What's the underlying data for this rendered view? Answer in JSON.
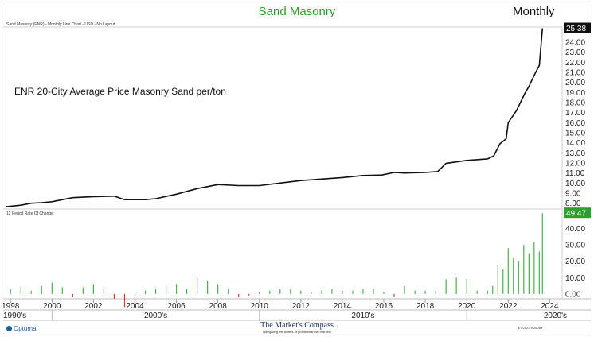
{
  "header": {
    "title": "Sand Masonry",
    "period": "Monthly",
    "subtitle": "Sand Masonry (ENR) - Monthly Line Chart - USD - No Layout"
  },
  "annotation": "ENR 20-City Average Price Masonry Sand per/ton",
  "roc_label": "12 Period Rate Of Change",
  "footer": {
    "vendor": "Optuma",
    "brand": "The Market's Compass",
    "tagline": "Navigating the waters of global financial markets",
    "stamp": "9/7/2023 9:26 AM"
  },
  "colors": {
    "title": "#2e9e2e",
    "line": "#111111",
    "positive_bar": "#4caf50",
    "negative_bar": "#e53935",
    "last_value_badge": "#111111",
    "roc_badge": "#2e9e2e"
  },
  "chart_data": [
    {
      "type": "line",
      "title": "Sand Masonry",
      "xlabel": "",
      "ylabel": "",
      "x_ticks": [
        "1998",
        "2000",
        "2002",
        "2004",
        "2006",
        "2008",
        "2010",
        "2012",
        "2014",
        "2016",
        "2018",
        "2020",
        "2022",
        "2024"
      ],
      "decade_labels": [
        "1990's",
        "2000's",
        "2010's",
        "2020's"
      ],
      "xlim": [
        1997.8,
        2024.6
      ],
      "ylim": [
        7.5,
        25.5
      ],
      "y_ticks": [
        "8.00",
        "9.00",
        "10.00",
        "11.00",
        "12.00",
        "13.00",
        "14.00",
        "15.00",
        "16.00",
        "17.00",
        "18.00",
        "19.00",
        "20.00",
        "21.00",
        "22.00",
        "23.00",
        "24.00"
      ],
      "last_value": "25.38",
      "grid": false,
      "series": [
        {
          "x": [
            1997.8,
            1998.5,
            1999.0,
            1999.5,
            2000.0,
            2001.0,
            2002.0,
            2003.0,
            2003.5,
            2004.5,
            2005.0,
            2006.0,
            2007.0,
            2008.0,
            2009.0,
            2010.0,
            2011.0,
            2012.0,
            2013.0,
            2014.0,
            2015.0,
            2015.9,
            2016.5,
            2017.0,
            2018.0,
            2018.6,
            2019.0,
            2020.0,
            2021.0,
            2021.3,
            2021.6,
            2021.9,
            2022.0,
            2022.4,
            2022.8,
            2023.0,
            2023.3,
            2023.5,
            2023.65
          ],
          "values": [
            7.65,
            7.8,
            8.0,
            8.05,
            8.15,
            8.55,
            8.65,
            8.7,
            8.35,
            8.35,
            8.45,
            8.9,
            9.45,
            9.85,
            9.75,
            9.75,
            10.0,
            10.25,
            10.4,
            10.55,
            10.75,
            10.8,
            11.05,
            11.0,
            11.05,
            11.15,
            11.95,
            12.25,
            12.4,
            12.7,
            13.9,
            14.4,
            16.0,
            17.2,
            18.9,
            19.6,
            20.9,
            21.7,
            25.38
          ]
        }
      ]
    },
    {
      "type": "bar",
      "title": "12 Period Rate Of Change",
      "ylim": [
        -3,
        52
      ],
      "y_ticks": [
        "0.00",
        "10.00",
        "20.00",
        "30.00",
        "40.00"
      ],
      "last_value": "49.47",
      "series": [
        {
          "x": [
            1998.0,
            1998.5,
            1999.0,
            1999.5,
            2000.0,
            2000.5,
            2001.0,
            2001.5,
            2002.0,
            2002.5,
            2003.0,
            2003.5,
            2004.0,
            2004.5,
            2005.0,
            2005.5,
            2006.0,
            2006.5,
            2007.0,
            2007.5,
            2008.0,
            2008.5,
            2009.0,
            2009.5,
            2010.0,
            2010.5,
            2011.0,
            2011.5,
            2012.0,
            2012.5,
            2013.0,
            2013.5,
            2014.0,
            2014.5,
            2015.0,
            2015.5,
            2016.0,
            2016.5,
            2017.0,
            2017.5,
            2018.0,
            2018.5,
            2019.0,
            2019.5,
            2020.0,
            2020.5,
            2021.0,
            2021.25,
            2021.5,
            2021.75,
            2022.0,
            2022.25,
            2022.5,
            2022.75,
            2023.0,
            2023.25,
            2023.5,
            2023.65
          ],
          "values": [
            3,
            4,
            2,
            5,
            7,
            4,
            -2,
            4,
            6,
            3,
            -3,
            -8,
            -6,
            2,
            3,
            5,
            6,
            3,
            10,
            8,
            6,
            3,
            -2,
            -1,
            1,
            2,
            3,
            3,
            2,
            1,
            2,
            3,
            2,
            2,
            3,
            3,
            1,
            -2,
            5,
            2,
            2,
            2,
            9,
            10,
            9,
            2,
            2,
            5,
            18,
            15,
            28,
            22,
            20,
            30,
            25,
            32,
            26,
            49.47
          ]
        }
      ]
    }
  ]
}
